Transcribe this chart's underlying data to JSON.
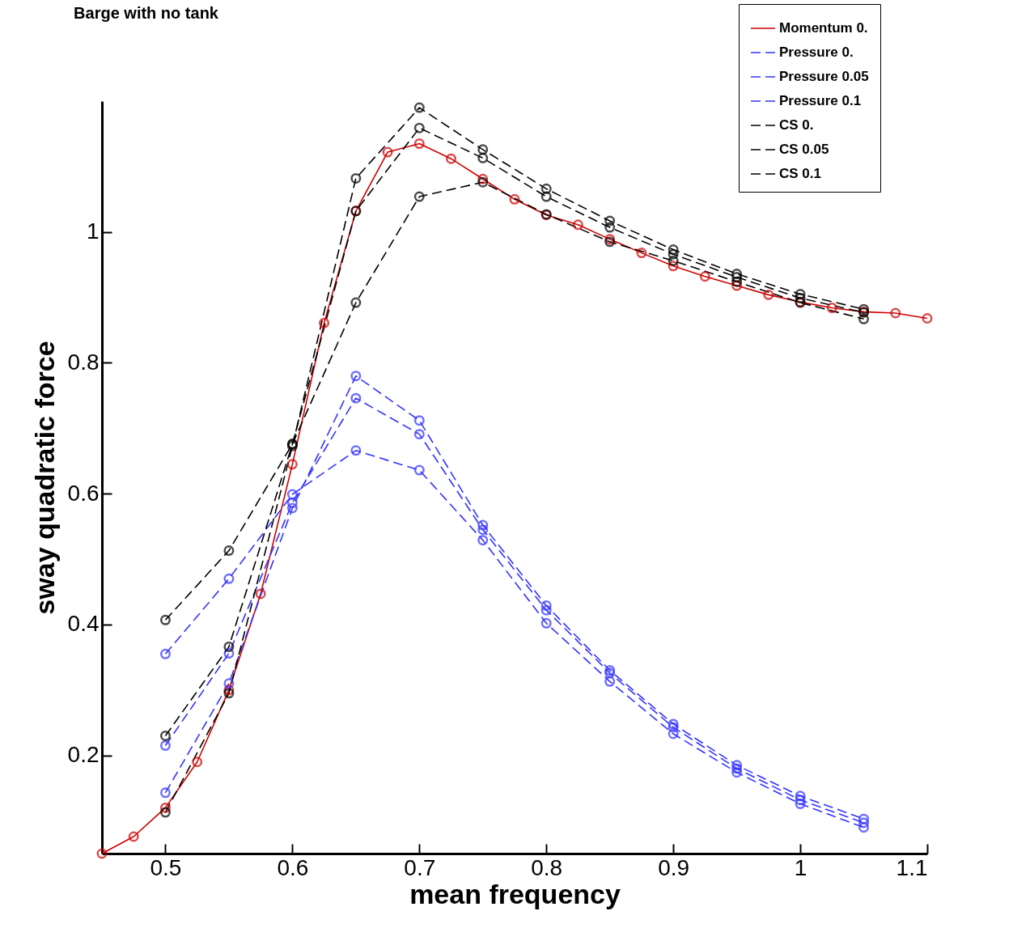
{
  "chart_data": {
    "type": "line",
    "title": "Barge with no tank",
    "xlabel": "mean frequency",
    "ylabel": "sway quadratic force",
    "xlim": [
      0.45,
      1.1
    ],
    "ylim": [
      0.05,
      1.2
    ],
    "xticks": [
      0.5,
      0.6,
      0.7,
      0.8,
      0.9,
      1,
      1.1
    ],
    "yticks": [
      0.2,
      0.4,
      0.6,
      0.8,
      1
    ],
    "legend": "top right",
    "marker": "circle",
    "series": [
      {
        "name": "Momentum 0.",
        "color": "#cc0000",
        "line_style": "solid",
        "x": [
          0.45,
          0.475,
          0.5,
          0.525,
          0.55,
          0.575,
          0.6,
          0.625,
          0.65,
          0.675,
          0.7,
          0.725,
          0.75,
          0.775,
          0.8,
          0.825,
          0.85,
          0.875,
          0.9,
          0.925,
          0.95,
          0.975,
          1.0,
          1.025,
          1.05,
          1.075,
          1.1
        ],
        "values": [
          0.05,
          0.076,
          0.12,
          0.19,
          0.3,
          0.447,
          0.645,
          0.861,
          1.032,
          1.122,
          1.135,
          1.112,
          1.081,
          1.05,
          1.026,
          1.011,
          0.989,
          0.968,
          0.948,
          0.932,
          0.918,
          0.904,
          0.893,
          0.884,
          0.878,
          0.876,
          0.868
        ]
      },
      {
        "name": "Pressure 0.",
        "color": "#3333ff",
        "line_style": "dashed",
        "x": [
          0.5,
          0.55,
          0.6,
          0.65,
          0.7,
          0.75,
          0.8,
          0.85,
          0.9,
          0.95,
          1.0,
          1.05
        ],
        "values": [
          0.143,
          0.31,
          0.578,
          0.78,
          0.712,
          0.552,
          0.429,
          0.33,
          0.248,
          0.185,
          0.138,
          0.103
        ]
      },
      {
        "name": "Pressure 0.05",
        "color": "#3333ff",
        "line_style": "dashed",
        "x": [
          0.5,
          0.55,
          0.6,
          0.65,
          0.7,
          0.75,
          0.8,
          0.85,
          0.9,
          0.95,
          1.0,
          1.05
        ],
        "values": [
          0.215,
          0.356,
          0.586,
          0.746,
          0.691,
          0.545,
          0.422,
          0.326,
          0.243,
          0.18,
          0.132,
          0.097
        ]
      },
      {
        "name": "Pressure 0.1",
        "color": "#3333ff",
        "line_style": "dashed",
        "x": [
          0.5,
          0.55,
          0.6,
          0.65,
          0.7,
          0.75,
          0.8,
          0.85,
          0.9,
          0.95,
          1.0,
          1.05
        ],
        "values": [
          0.355,
          0.47,
          0.599,
          0.666,
          0.636,
          0.529,
          0.402,
          0.313,
          0.233,
          0.174,
          0.126,
          0.09
        ]
      },
      {
        "name": "CS 0.",
        "color": "#000000",
        "line_style": "dashed",
        "x": [
          0.5,
          0.55,
          0.6,
          0.65,
          0.7,
          0.75,
          0.8,
          0.85,
          0.9,
          0.95,
          1.0,
          1.05
        ],
        "values": [
          0.113,
          0.295,
          0.673,
          1.082,
          1.19,
          1.126,
          1.066,
          1.017,
          0.973,
          0.936,
          0.905,
          0.882
        ]
      },
      {
        "name": "CS 0.05",
        "color": "#000000",
        "line_style": "dashed",
        "x": [
          0.5,
          0.55,
          0.6,
          0.65,
          0.7,
          0.75,
          0.8,
          0.85,
          0.9,
          0.95,
          1.0,
          1.05
        ],
        "values": [
          0.23,
          0.366,
          0.676,
          1.032,
          1.159,
          1.113,
          1.054,
          1.007,
          0.966,
          0.931,
          0.899,
          0.877
        ]
      },
      {
        "name": "CS 0.1",
        "color": "#000000",
        "line_style": "dashed",
        "x": [
          0.5,
          0.55,
          0.6,
          0.65,
          0.7,
          0.75,
          0.8,
          0.85,
          0.9,
          0.95,
          1.0,
          1.05
        ],
        "values": [
          0.407,
          0.513,
          0.676,
          0.892,
          1.054,
          1.076,
          1.027,
          0.985,
          0.956,
          0.924,
          0.892,
          0.867
        ]
      }
    ]
  }
}
